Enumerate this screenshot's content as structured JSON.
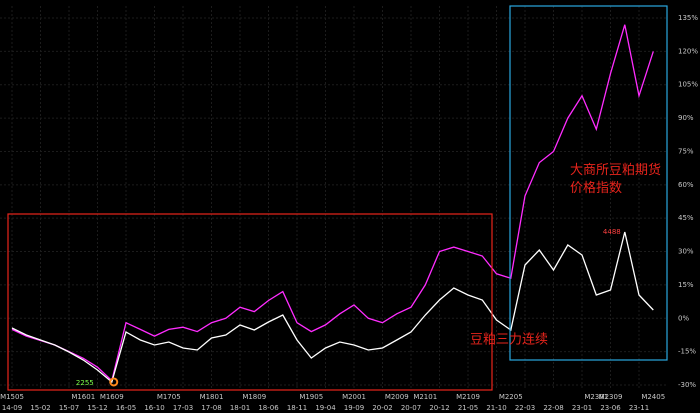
{
  "chart_data": {
    "type": "line",
    "categories": [
      "14-09",
      null,
      "15-02",
      null,
      "15-07",
      null,
      "15-12",
      null,
      "16-05",
      null,
      "16-10",
      null,
      "17-03",
      null,
      "17-08",
      null,
      "18-01",
      null,
      "18-06",
      null,
      "18-11",
      null,
      "19-04",
      null,
      "19-09",
      null,
      "20-02",
      null,
      "20-07",
      null,
      "20-12",
      null,
      "21-05",
      null,
      "21-10",
      null,
      "22-03",
      null,
      "22-08",
      null,
      "23-01",
      null,
      "23-06",
      null,
      "23-11",
      null
    ],
    "contracts": [
      "M1505",
      null,
      null,
      null,
      null,
      "M1601",
      null,
      "M1609",
      null,
      null,
      null,
      "M1705",
      null,
      null,
      "M1801",
      null,
      null,
      "M1809",
      null,
      null,
      null,
      "M1905",
      null,
      null,
      "M2001",
      null,
      null,
      "M2009",
      null,
      "M2101",
      null,
      null,
      "M2109",
      null,
      null,
      "M2205",
      null,
      null,
      null,
      null,
      null,
      "M2301",
      "M2309",
      null,
      null,
      "M2405"
    ],
    "series": [
      {
        "name": "大商所豆粕期货价格指数",
        "color": "#ff2cff",
        "values": [
          -5,
          -8,
          -10,
          -12,
          -15,
          -18,
          -22,
          -28,
          -2,
          -5,
          -8,
          -5,
          -4,
          -6,
          -2,
          0,
          5,
          3,
          8,
          12,
          -2,
          -6,
          -3,
          2,
          6,
          0,
          -2,
          2,
          5,
          15,
          30,
          32,
          30,
          28,
          20,
          18,
          55,
          70,
          75,
          90,
          100,
          85,
          110,
          132,
          100,
          120
        ]
      },
      {
        "name": "豆粕三力连续",
        "color": "#ffffff",
        "axis": "y2",
        "values": [
          3059,
          2955,
          2880,
          2806,
          2701,
          2582,
          2433,
          2255,
          2999,
          2880,
          2806,
          2850,
          2761,
          2731,
          2910,
          2955,
          3103,
          3029,
          3148,
          3252,
          2880,
          2612,
          2761,
          2850,
          2806,
          2731,
          2761,
          2880,
          2999,
          3252,
          3476,
          3654,
          3550,
          3476,
          3178,
          3029,
          3997,
          4220,
          3922,
          4295,
          4146,
          3550,
          3625,
          4488,
          3550,
          3327
        ]
      }
    ],
    "ylim": [
      -30,
      135
    ],
    "yticks": [
      {
        "value": -30,
        "label": "-30%"
      },
      {
        "value": -15,
        "label": "-15%"
      },
      {
        "value": 0,
        "label": "0%"
      },
      {
        "value": 15,
        "label": "15%"
      },
      {
        "value": 30,
        "label": "30%"
      },
      {
        "value": 45,
        "label": "45%"
      },
      {
        "value": 60,
        "label": "60%"
      },
      {
        "value": 75,
        "label": "75%"
      },
      {
        "value": 90,
        "label": "90%"
      },
      {
        "value": 105,
        "label": "105%"
      },
      {
        "value": 120,
        "label": "120%"
      },
      {
        "value": 135,
        "label": "135%"
      }
    ],
    "y2lim": [
      2210,
      7675
    ],
    "grid": true
  }
}
